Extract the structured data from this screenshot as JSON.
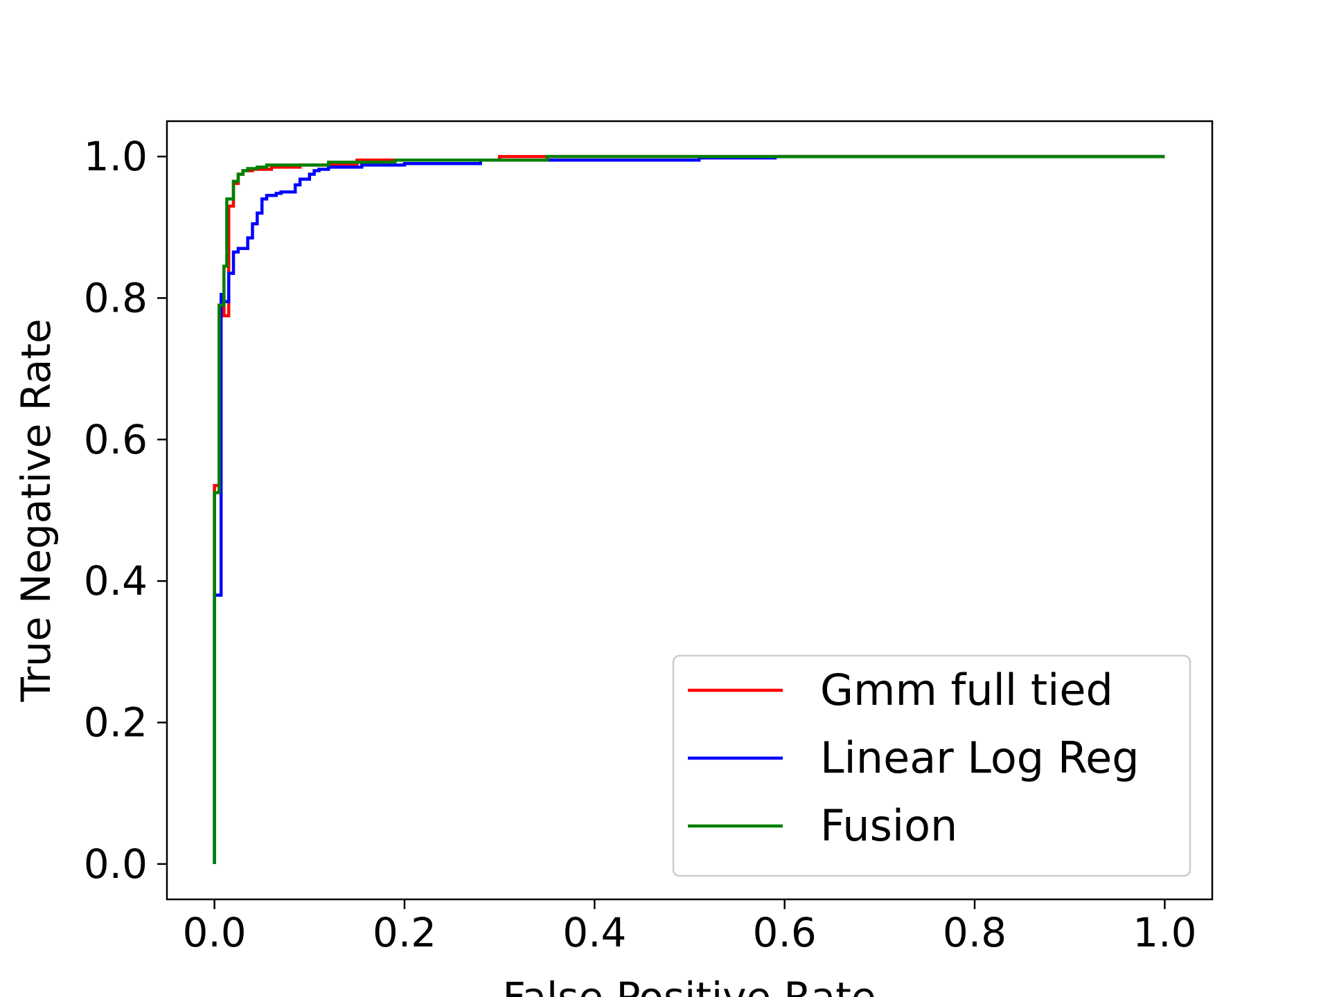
{
  "chart_data": {
    "type": "line",
    "title": "",
    "xlabel": "False Positive Rate",
    "ylabel": "True Negative Rate",
    "xlim": [
      -0.05,
      1.05
    ],
    "ylim": [
      -0.05,
      1.05
    ],
    "xticks": [
      "0.0",
      "0.2",
      "0.4",
      "0.6",
      "0.8",
      "1.0"
    ],
    "yticks": [
      "0.0",
      "0.2",
      "0.4",
      "0.6",
      "0.8",
      "1.0"
    ],
    "xtick_values": [
      0.0,
      0.2,
      0.4,
      0.6,
      0.8,
      1.0
    ],
    "ytick_values": [
      0.0,
      0.2,
      0.4,
      0.6,
      0.8,
      1.0
    ],
    "grid": false,
    "legend_position": "lower right",
    "series": [
      {
        "name": "Gmm full tied",
        "color": "#ff0000",
        "x": [
          0.0,
          0.0,
          0.005,
          0.005,
          0.01,
          0.01,
          0.015,
          0.015,
          0.02,
          0.02,
          0.025,
          0.025,
          0.03,
          0.03,
          0.04,
          0.04,
          0.06,
          0.06,
          0.09,
          0.09,
          0.15,
          0.15,
          0.3,
          0.3,
          1.0
        ],
        "y": [
          0.0,
          0.535,
          0.535,
          0.79,
          0.79,
          0.775,
          0.775,
          0.93,
          0.93,
          0.962,
          0.962,
          0.975,
          0.975,
          0.98,
          0.98,
          0.982,
          0.982,
          0.985,
          0.985,
          0.988,
          0.988,
          0.995,
          0.995,
          1.0,
          1.0
        ]
      },
      {
        "name": "Linear Log Reg",
        "color": "#0000ff",
        "x": [
          0.0,
          0.0,
          0.007,
          0.007,
          0.01,
          0.01,
          0.015,
          0.015,
          0.02,
          0.02,
          0.025,
          0.025,
          0.035,
          0.035,
          0.04,
          0.04,
          0.045,
          0.045,
          0.05,
          0.05,
          0.055,
          0.055,
          0.065,
          0.065,
          0.07,
          0.07,
          0.085,
          0.085,
          0.09,
          0.09,
          0.1,
          0.1,
          0.105,
          0.105,
          0.11,
          0.11,
          0.12,
          0.12,
          0.155,
          0.155,
          0.2,
          0.2,
          0.28,
          0.28,
          0.51,
          0.51,
          0.59,
          0.59,
          1.0
        ],
        "y": [
          0.0,
          0.38,
          0.38,
          0.805,
          0.805,
          0.795,
          0.795,
          0.835,
          0.835,
          0.865,
          0.865,
          0.87,
          0.87,
          0.885,
          0.885,
          0.905,
          0.905,
          0.92,
          0.92,
          0.94,
          0.94,
          0.945,
          0.945,
          0.948,
          0.948,
          0.95,
          0.95,
          0.96,
          0.96,
          0.968,
          0.968,
          0.975,
          0.975,
          0.98,
          0.98,
          0.982,
          0.982,
          0.985,
          0.985,
          0.988,
          0.988,
          0.99,
          0.99,
          0.995,
          0.995,
          0.998,
          0.998,
          1.0,
          1.0
        ]
      },
      {
        "name": "Fusion",
        "color": "#008000",
        "x": [
          0.0,
          0.0,
          0.005,
          0.005,
          0.01,
          0.01,
          0.013,
          0.013,
          0.02,
          0.02,
          0.025,
          0.025,
          0.03,
          0.03,
          0.035,
          0.035,
          0.045,
          0.045,
          0.055,
          0.055,
          0.12,
          0.12,
          0.19,
          0.19,
          0.35,
          0.35,
          1.0
        ],
        "y": [
          0.0,
          0.525,
          0.525,
          0.79,
          0.79,
          0.845,
          0.845,
          0.94,
          0.94,
          0.965,
          0.965,
          0.975,
          0.975,
          0.98,
          0.98,
          0.983,
          0.983,
          0.985,
          0.985,
          0.988,
          0.988,
          0.992,
          0.992,
          0.995,
          0.995,
          1.0,
          1.0
        ]
      }
    ]
  }
}
